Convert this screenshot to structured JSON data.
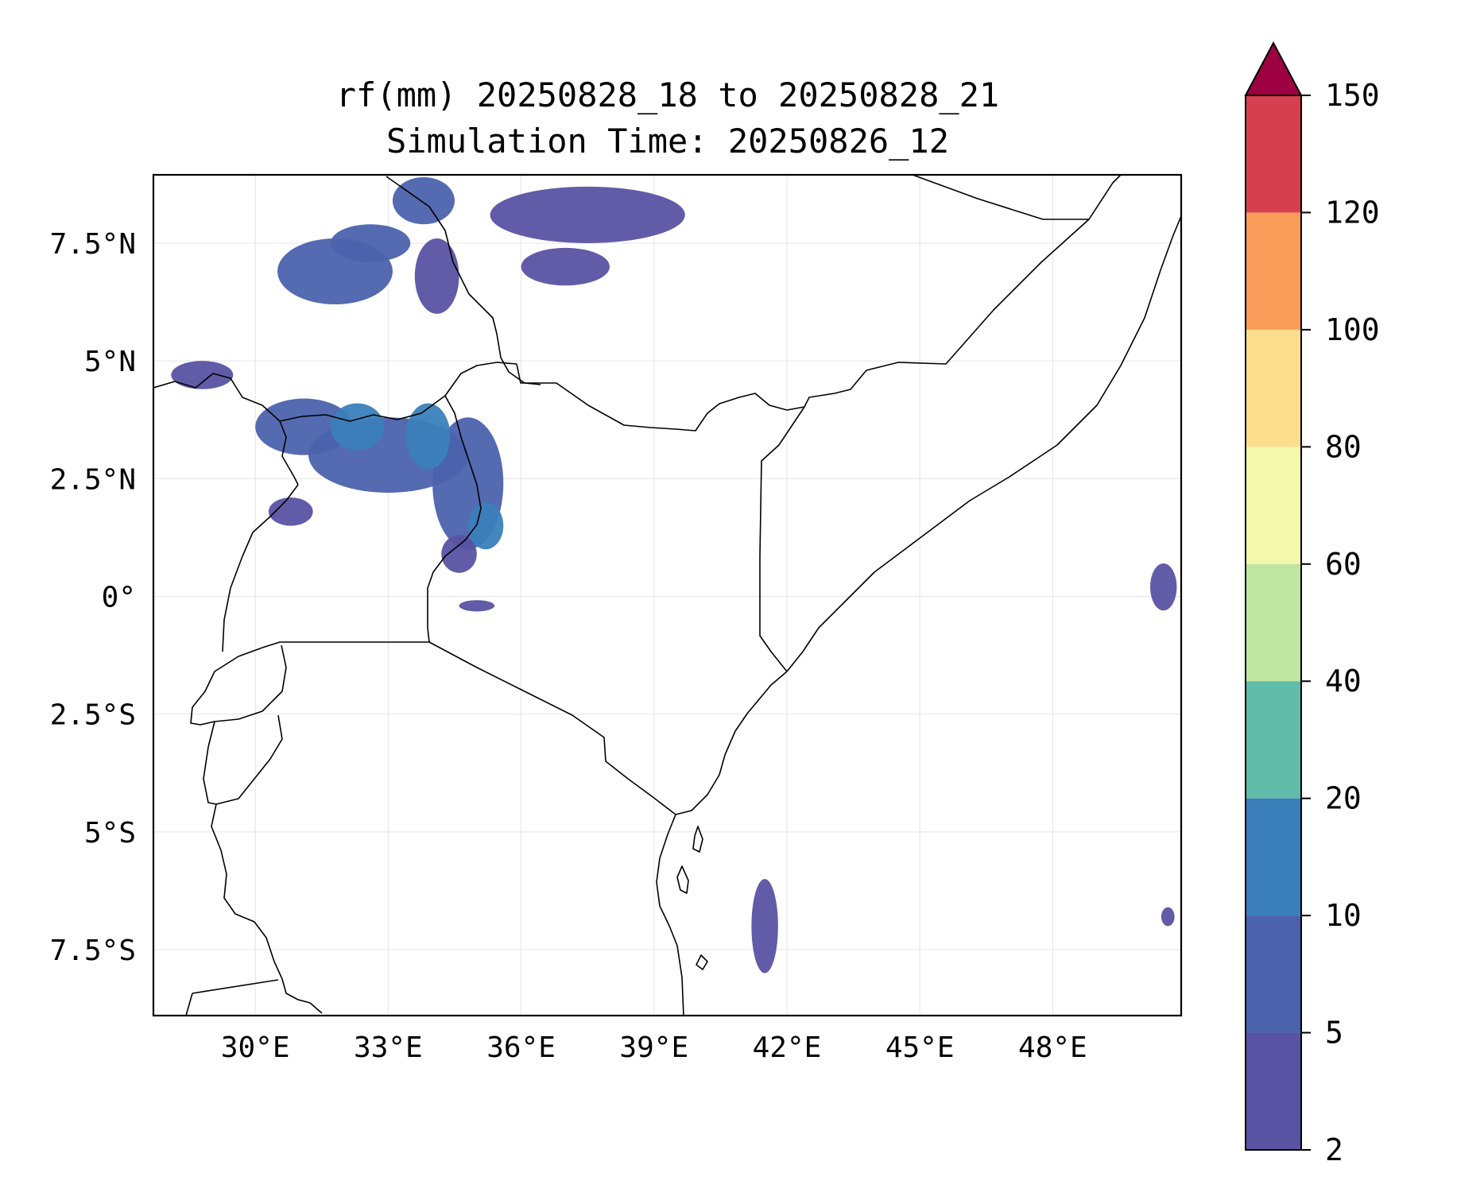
{
  "figure": {
    "title_line1": "rf(mm) 20250828_18 to 20250828_21",
    "title_line2": "Simulation Time: 20250826_12"
  },
  "map": {
    "lon_range": [
      27.7,
      50.9
    ],
    "lat_range": [
      -8.9,
      8.95
    ],
    "x_ticks": [
      {
        "value": 30,
        "label": "30°E"
      },
      {
        "value": 33,
        "label": "33°E"
      },
      {
        "value": 36,
        "label": "36°E"
      },
      {
        "value": 39,
        "label": "39°E"
      },
      {
        "value": 42,
        "label": "42°E"
      },
      {
        "value": 45,
        "label": "45°E"
      },
      {
        "value": 48,
        "label": "48°E"
      }
    ],
    "y_ticks": [
      {
        "value": 7.5,
        "label": "7.5°N"
      },
      {
        "value": 5,
        "label": "5°N"
      },
      {
        "value": 2.5,
        "label": "2.5°N"
      },
      {
        "value": 0,
        "label": "0°"
      },
      {
        "value": -2.5,
        "label": "2.5°S"
      },
      {
        "value": -5,
        "label": "5°S"
      },
      {
        "value": -7.5,
        "label": "7.5°S"
      }
    ],
    "grid": true
  },
  "colorbar": {
    "levels": [
      {
        "label": "2",
        "color": "#5a52a3"
      },
      {
        "label": "5",
        "color": "#4b62ad"
      },
      {
        "label": "10",
        "color": "#3a7fba"
      },
      {
        "label": "20",
        "color": "#60bba8"
      },
      {
        "label": "40",
        "color": "#bfe5a0"
      },
      {
        "label": "60",
        "color": "#f3f9ab"
      },
      {
        "label": "80",
        "color": "#fcdd8b"
      },
      {
        "label": "100",
        "color": "#f99b59"
      },
      {
        "label": "120",
        "color": "#d6404e"
      },
      {
        "label": "150",
        "color": "#9e0142"
      }
    ],
    "extend": "max"
  },
  "chart_data": {
    "type": "heatmap",
    "variable": "rf(mm)",
    "period": "20250828_18 to 20250828_21",
    "levels_mm": [
      2,
      5,
      10,
      20,
      40,
      60,
      80,
      100,
      120,
      150
    ],
    "rain_areas": [
      {
        "lon": 31.8,
        "lat": 6.9,
        "rx": 1.3,
        "ry": 0.7,
        "level": 5
      },
      {
        "lon": 32.6,
        "lat": 7.5,
        "rx": 0.9,
        "ry": 0.4,
        "level": 5
      },
      {
        "lon": 33.8,
        "lat": 8.4,
        "rx": 0.7,
        "ry": 0.5,
        "level": 5
      },
      {
        "lon": 34.1,
        "lat": 6.8,
        "rx": 0.5,
        "ry": 0.8,
        "level": 2
      },
      {
        "lon": 37.5,
        "lat": 8.1,
        "rx": 2.2,
        "ry": 0.6,
        "level": 2
      },
      {
        "lon": 37.0,
        "lat": 7.0,
        "rx": 1.0,
        "ry": 0.4,
        "level": 2
      },
      {
        "lon": 31.1,
        "lat": 3.6,
        "rx": 1.1,
        "ry": 0.6,
        "level": 5
      },
      {
        "lon": 33.0,
        "lat": 3.0,
        "rx": 1.8,
        "ry": 0.8,
        "level": 5
      },
      {
        "lon": 34.8,
        "lat": 2.4,
        "rx": 0.8,
        "ry": 1.4,
        "level": 5
      },
      {
        "lon": 32.3,
        "lat": 3.6,
        "rx": 0.6,
        "ry": 0.5,
        "level": 10
      },
      {
        "lon": 33.9,
        "lat": 3.4,
        "rx": 0.5,
        "ry": 0.7,
        "level": 10
      },
      {
        "lon": 35.2,
        "lat": 1.5,
        "rx": 0.4,
        "ry": 0.5,
        "level": 10
      },
      {
        "lon": 34.6,
        "lat": 0.9,
        "rx": 0.4,
        "ry": 0.4,
        "level": 2
      },
      {
        "lon": 28.8,
        "lat": 4.7,
        "rx": 0.7,
        "ry": 0.3,
        "level": 2
      },
      {
        "lon": 30.8,
        "lat": 1.8,
        "rx": 0.5,
        "ry": 0.3,
        "level": 2
      },
      {
        "lon": 35.0,
        "lat": -0.2,
        "rx": 0.4,
        "ry": 0.12,
        "level": 2
      },
      {
        "lon": 41.5,
        "lat": -7.0,
        "rx": 0.3,
        "ry": 1.0,
        "level": 2
      },
      {
        "lon": 50.5,
        "lat": 0.2,
        "rx": 0.3,
        "ry": 0.5,
        "level": 2
      },
      {
        "lon": 50.6,
        "lat": -6.8,
        "rx": 0.15,
        "ry": 0.2,
        "level": 2
      }
    ]
  }
}
